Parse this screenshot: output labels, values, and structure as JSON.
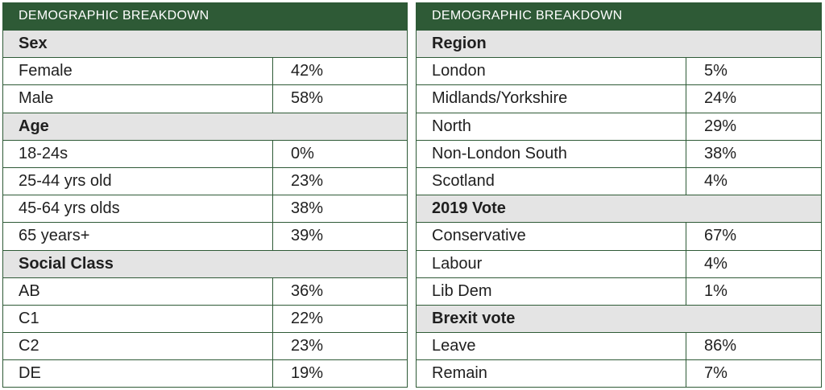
{
  "left": {
    "header": "DEMOGRAPHIC BREAKDOWN",
    "rows": [
      {
        "type": "section",
        "label": "Sex"
      },
      {
        "type": "item",
        "label": "Female",
        "value": "42%"
      },
      {
        "type": "item",
        "label": "Male",
        "value": "58%"
      },
      {
        "type": "section",
        "label": "Age"
      },
      {
        "type": "item",
        "label": "18-24s",
        "value": "0%"
      },
      {
        "type": "item",
        "label": "25-44 yrs old",
        "value": "23%"
      },
      {
        "type": "item",
        "label": "45-64 yrs olds",
        "value": "38%"
      },
      {
        "type": "item",
        "label": "65 years+",
        "value": "39%"
      },
      {
        "type": "section",
        "label": "Social Class"
      },
      {
        "type": "item",
        "label": "AB",
        "value": "36%"
      },
      {
        "type": "item",
        "label": "C1",
        "value": "22%"
      },
      {
        "type": "item",
        "label": "C2",
        "value": "23%"
      },
      {
        "type": "item",
        "label": "DE",
        "value": "19%"
      }
    ]
  },
  "right": {
    "header": "DEMOGRAPHIC BREAKDOWN",
    "rows": [
      {
        "type": "section",
        "label": "Region"
      },
      {
        "type": "item",
        "label": "London",
        "value": "5%"
      },
      {
        "type": "item",
        "label": "Midlands/Yorkshire",
        "value": "24%"
      },
      {
        "type": "item",
        "label": "North",
        "value": "29%"
      },
      {
        "type": "item",
        "label": "Non-London South",
        "value": "38%"
      },
      {
        "type": "item",
        "label": "Scotland",
        "value": "4%"
      },
      {
        "type": "section",
        "label": "2019 Vote"
      },
      {
        "type": "item",
        "label": "Conservative",
        "value": "67%"
      },
      {
        "type": "item",
        "label": "Labour",
        "value": "4%"
      },
      {
        "type": "item",
        "label": "Lib Dem",
        "value": "1%"
      },
      {
        "type": "section",
        "label": "Brexit vote"
      },
      {
        "type": "item",
        "label": "Leave",
        "value": "86%"
      },
      {
        "type": "item",
        "label": "Remain",
        "value": "7%"
      }
    ]
  }
}
